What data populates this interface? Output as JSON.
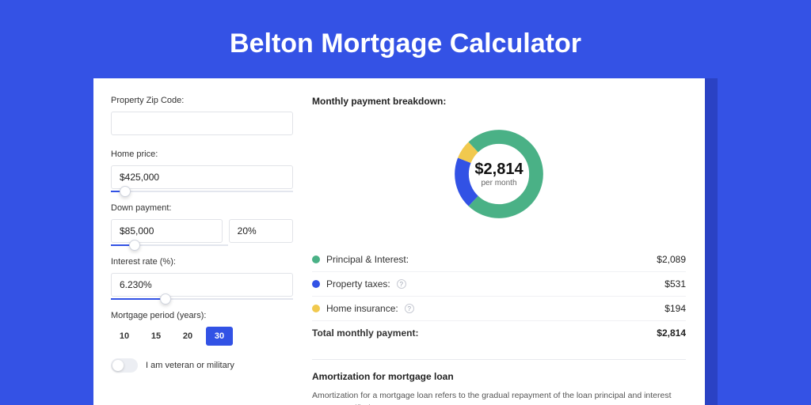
{
  "page": {
    "title": "Belton Mortgage Calculator",
    "bg_color": "#3452e5",
    "card_shadow_color": "#2a42c4",
    "card_bg": "#ffffff"
  },
  "form": {
    "zip": {
      "label": "Property Zip Code:",
      "value": ""
    },
    "home_price": {
      "label": "Home price:",
      "value": "$425,000",
      "slider_pct": 8
    },
    "down_payment": {
      "label": "Down payment:",
      "value": "$85,000",
      "pct_value": "20%",
      "slider_pct": 20
    },
    "interest_rate": {
      "label": "Interest rate (%):",
      "value": "6.230%",
      "slider_pct": 30
    },
    "period": {
      "label": "Mortgage period (years):",
      "options": [
        "10",
        "15",
        "20",
        "30"
      ],
      "selected": "30"
    },
    "veteran": {
      "label": "I am veteran or military",
      "checked": false
    }
  },
  "breakdown": {
    "title": "Monthly payment breakdown:",
    "donut": {
      "value": "$2,814",
      "sub": "per month",
      "slices": [
        {
          "label": "Principal & Interest",
          "color": "#4ab186",
          "pct": 74.2
        },
        {
          "label": "Property taxes",
          "color": "#3252e5",
          "pct": 18.9
        },
        {
          "label": "Home insurance",
          "color": "#f1c94e",
          "pct": 6.9
        }
      ]
    },
    "rows": [
      {
        "dot": "#4ab186",
        "label": "Principal & Interest:",
        "info": false,
        "value": "$2,089"
      },
      {
        "dot": "#3252e5",
        "label": "Property taxes:",
        "info": true,
        "value": "$531"
      },
      {
        "dot": "#f1c94e",
        "label": "Home insurance:",
        "info": true,
        "value": "$194"
      }
    ],
    "total": {
      "label": "Total monthly payment:",
      "value": "$2,814"
    }
  },
  "amortization": {
    "title": "Amortization for mortgage loan",
    "text": "Amortization for a mortgage loan refers to the gradual repayment of the loan principal and interest over a specified"
  }
}
